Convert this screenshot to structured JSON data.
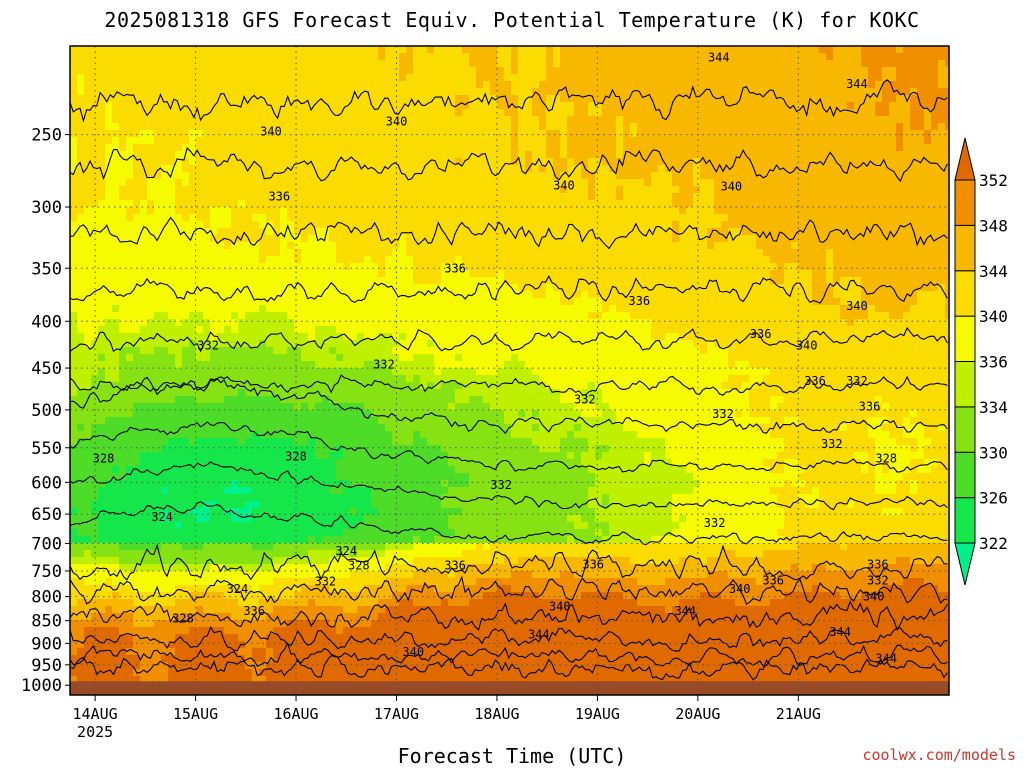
{
  "title": "2025081318 GFS Forecast Equiv. Potential Temperature (K) for KOKC",
  "credit": "coolwx.com/models",
  "chart_data": {
    "type": "heatmap",
    "title": "2025081318 GFS Forecast Equiv. Potential Temperature (K) for KOKC",
    "xlabel": "Forecast Time (UTC)",
    "ylabel": "",
    "y_scale": "log-pressure",
    "yaxis_pressure_ticks": [
      "250",
      "300",
      "350",
      "400",
      "450",
      "500",
      "550",
      "600",
      "650",
      "700",
      "750",
      "800",
      "850",
      "900",
      "950",
      "1000"
    ],
    "ylim_hPa": [
      200,
      1025
    ],
    "xaxis_ticks": [
      "14AUG",
      "15AUG",
      "16AUG",
      "17AUG",
      "18AUG",
      "19AUG",
      "20AUG",
      "21AUG"
    ],
    "xaxis_first_tick_year": "2025",
    "xlim_hours": [
      0,
      210
    ],
    "grid": true,
    "surface_fill": "#9b4a26",
    "surface_top_hPa": 990,
    "colorbar": {
      "levels": [
        322,
        326,
        330,
        334,
        336,
        340,
        344,
        348,
        352
      ],
      "colors": [
        "#00f08c",
        "#15e64a",
        "#4ddc28",
        "#86e212",
        "#bff000",
        "#f6fb00",
        "#fadc00",
        "#f8b800",
        "#f09000",
        "#e06a00"
      ],
      "extend": "both"
    },
    "contour_labels": [
      {
        "v": "340",
        "t": 48,
        "p": 248
      },
      {
        "v": "340",
        "t": 78,
        "p": 242
      },
      {
        "v": "336",
        "t": 50,
        "p": 292
      },
      {
        "v": "340",
        "t": 118,
        "p": 284
      },
      {
        "v": "340",
        "t": 158,
        "p": 285
      },
      {
        "v": "344",
        "t": 155,
        "p": 206
      },
      {
        "v": "344",
        "t": 188,
        "p": 220
      },
      {
        "v": "336",
        "t": 92,
        "p": 350
      },
      {
        "v": "336",
        "t": 136,
        "p": 380
      },
      {
        "v": "336",
        "t": 165,
        "p": 413
      },
      {
        "v": "340",
        "t": 176,
        "p": 425
      },
      {
        "v": "340",
        "t": 188,
        "p": 385
      },
      {
        "v": "336",
        "t": 178,
        "p": 465
      },
      {
        "v": "332",
        "t": 188,
        "p": 465
      },
      {
        "v": "336",
        "t": 191,
        "p": 496
      },
      {
        "v": "332",
        "t": 33,
        "p": 425
      },
      {
        "v": "332",
        "t": 75,
        "p": 446
      },
      {
        "v": "332",
        "t": 123,
        "p": 487
      },
      {
        "v": "332",
        "t": 156,
        "p": 505
      },
      {
        "v": "332",
        "t": 182,
        "p": 545
      },
      {
        "v": "328",
        "t": 195,
        "p": 565
      },
      {
        "v": "328",
        "t": 8,
        "p": 565
      },
      {
        "v": "328",
        "t": 54,
        "p": 562
      },
      {
        "v": "332",
        "t": 103,
        "p": 604
      },
      {
        "v": "324",
        "t": 22,
        "p": 655
      },
      {
        "v": "332",
        "t": 154,
        "p": 665
      },
      {
        "v": "324",
        "t": 66,
        "p": 713
      },
      {
        "v": "328",
        "t": 69,
        "p": 740
      },
      {
        "v": "336",
        "t": 92,
        "p": 740
      },
      {
        "v": "336",
        "t": 125,
        "p": 738
      },
      {
        "v": "332",
        "t": 61,
        "p": 770
      },
      {
        "v": "324",
        "t": 40,
        "p": 785
      },
      {
        "v": "336",
        "t": 44,
        "p": 830
      },
      {
        "v": "328",
        "t": 27,
        "p": 845
      },
      {
        "v": "340",
        "t": 117,
        "p": 820
      },
      {
        "v": "336",
        "t": 168,
        "p": 768
      },
      {
        "v": "340",
        "t": 160,
        "p": 785
      },
      {
        "v": "336",
        "t": 193,
        "p": 738
      },
      {
        "v": "332",
        "t": 193,
        "p": 768
      },
      {
        "v": "340",
        "t": 192,
        "p": 800
      },
      {
        "v": "344",
        "t": 147,
        "p": 830
      },
      {
        "v": "344",
        "t": 112,
        "p": 880
      },
      {
        "v": "340",
        "t": 82,
        "p": 920
      },
      {
        "v": "344",
        "t": 184,
        "p": 875
      },
      {
        "v": "344",
        "t": 195,
        "p": 935
      }
    ]
  }
}
